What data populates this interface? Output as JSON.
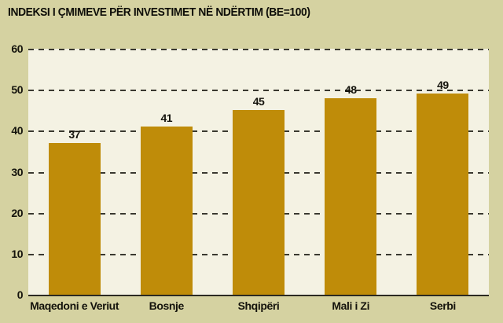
{
  "title": "INDEKSI I ÇMIMEVE PËR INVESTIMET NË NDËRTIM (BE=100)",
  "chart_data": {
    "type": "bar",
    "title": "INDEKSI I ÇMIMEVE PËR INVESTIMET NË NDËRTIM (BE=100)",
    "categories": [
      "Maqedoni e Veriut",
      "Bosnje",
      "Shqipëri",
      "Mali i Zi",
      "Serbi"
    ],
    "values": [
      37,
      41,
      45,
      48,
      49
    ],
    "xlabel": "",
    "ylabel": "",
    "ylim": [
      0,
      60
    ],
    "yticks": [
      0,
      10,
      20,
      30,
      40,
      50,
      60
    ],
    "grid": "horizontal-dashed",
    "legend_position": "none",
    "bar_labels_shown": true,
    "colors": {
      "bar": "#bf8c09",
      "background": "#d5d2a1",
      "plot_background": "#f4f2e3",
      "grid_line": "#3a3930",
      "baseline": "#2b2a22",
      "text": "#14130c"
    }
  }
}
